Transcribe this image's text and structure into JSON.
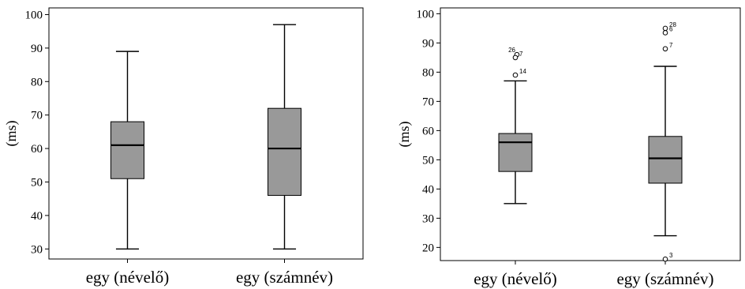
{
  "chart_data": [
    {
      "type": "boxplot",
      "ylabel": "(ms)",
      "ylim": [
        27,
        102
      ],
      "yticks": [
        30,
        40,
        50,
        60,
        70,
        80,
        90,
        100
      ],
      "categories": [
        "egy (névelő)",
        "egy (számnév)"
      ],
      "box_color": "#999999",
      "boxes": [
        {
          "min": 30,
          "q1": 51,
          "median": 61,
          "q3": 68,
          "max": 89,
          "outliers": []
        },
        {
          "min": 30,
          "q1": 46,
          "median": 60,
          "q3": 72,
          "max": 97,
          "outliers": []
        }
      ]
    },
    {
      "type": "boxplot",
      "ylabel": "(ms)",
      "ylim": [
        15.5,
        102
      ],
      "yticks": [
        20,
        30,
        40,
        50,
        60,
        70,
        80,
        90,
        100
      ],
      "categories": [
        "egy (névelő)",
        "egy (számnév)"
      ],
      "box_color": "#999999",
      "boxes": [
        {
          "min": 35,
          "q1": 46,
          "median": 56,
          "q3": 59,
          "max": 77,
          "outliers": [
            {
              "value": 86,
              "label": "26"
            },
            {
              "value": 85,
              "label": "7"
            },
            {
              "value": 79,
              "label": "14"
            }
          ]
        },
        {
          "min": 24,
          "q1": 42,
          "median": 50.5,
          "q3": 58,
          "max": 82,
          "outliers": [
            {
              "value": 95,
              "label": "28"
            },
            {
              "value": 93.5,
              "label": "6"
            },
            {
              "value": 88,
              "label": "7"
            },
            {
              "value": 16,
              "label": "3"
            }
          ]
        }
      ]
    }
  ]
}
